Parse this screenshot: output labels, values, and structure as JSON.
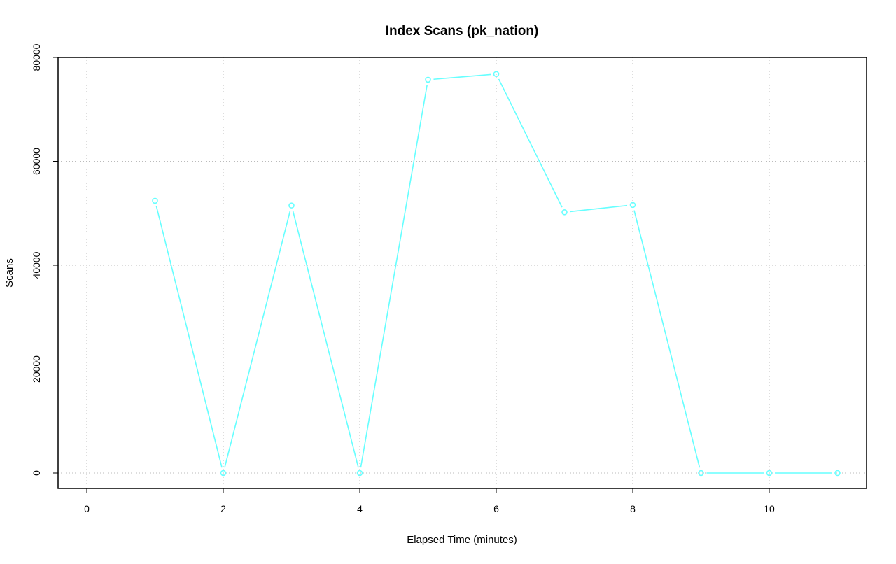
{
  "chart_data": {
    "type": "line",
    "title": "Index Scans (pk_nation)",
    "xlabel": "Elapsed Time (minutes)",
    "ylabel": "Scans",
    "xlim": [
      -0.43,
      11.43
    ],
    "ylim": [
      -3000,
      80000
    ],
    "xticks": [
      0,
      2,
      4,
      6,
      8,
      10
    ],
    "yticks": [
      0,
      20000,
      40000,
      60000,
      80000
    ],
    "grid": true,
    "series": [
      {
        "color": "#66ffff",
        "x": [
          1,
          2,
          3,
          4,
          5,
          6,
          7,
          8,
          9,
          10,
          11
        ],
        "y": [
          52400,
          0,
          51500,
          0,
          75700,
          76800,
          50200,
          51600,
          0,
          0,
          0
        ]
      }
    ]
  }
}
